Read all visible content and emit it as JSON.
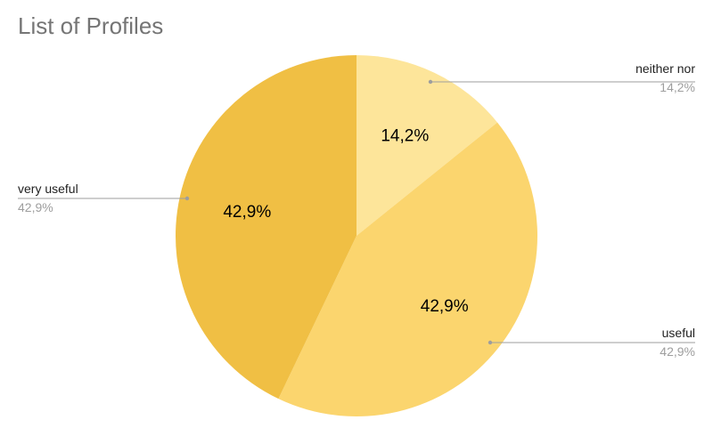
{
  "chart_data": {
    "type": "pie",
    "title": "List of Profiles",
    "slices": [
      {
        "label": "neither nor",
        "value": 14.2,
        "display": "14,2%",
        "legend_value": "14,2%",
        "color": "#fde59a",
        "label_side": "right"
      },
      {
        "label": "useful",
        "value": 42.9,
        "display": "42,9%",
        "legend_value": "42,9%",
        "color": "#fbd56e",
        "label_side": "right"
      },
      {
        "label": "very useful",
        "value": 42.9,
        "display": "42,9%",
        "legend_value": "42,9%",
        "color": "#f0bf44",
        "label_side": "left"
      }
    ],
    "start_angle": "top",
    "direction": "clockwise",
    "legend": "callout labels"
  }
}
